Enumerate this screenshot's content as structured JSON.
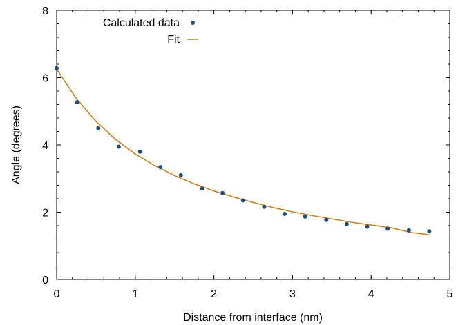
{
  "chart_data": {
    "type": "scatter",
    "xlabel": "Distance from interface (nm)",
    "ylabel": "Angle (degrees)",
    "xlim": [
      0,
      5
    ],
    "ylim": [
      0,
      8
    ],
    "x_ticks": [
      0,
      1,
      2,
      3,
      4,
      5
    ],
    "y_ticks": [
      0,
      2,
      4,
      6,
      8
    ],
    "x_tick_labels": [
      "0",
      "1",
      "2",
      "3",
      "4",
      "5"
    ],
    "y_tick_labels": [
      "0",
      "2",
      "4",
      "6",
      "8"
    ],
    "grid": false,
    "legend_position": "top-left",
    "series": [
      {
        "name": "Calculated data",
        "kind": "points",
        "color": "#1f4e79",
        "x": [
          0.0,
          0.26,
          0.53,
          0.79,
          1.06,
          1.32,
          1.58,
          1.85,
          2.11,
          2.37,
          2.64,
          2.9,
          3.16,
          3.43,
          3.69,
          3.95,
          4.21,
          4.48,
          4.74
        ],
        "y": [
          6.28,
          5.27,
          4.5,
          3.95,
          3.8,
          3.34,
          3.1,
          2.7,
          2.57,
          2.35,
          2.16,
          1.95,
          1.87,
          1.77,
          1.65,
          1.57,
          1.51,
          1.46,
          1.43
        ]
      },
      {
        "name": "Fit",
        "kind": "line",
        "color": "#c8831e",
        "x": [
          0.0,
          0.25,
          0.5,
          0.75,
          1.0,
          1.25,
          1.5,
          1.75,
          2.0,
          2.25,
          2.5,
          2.75,
          3.0,
          3.25,
          3.5,
          3.75,
          4.0,
          4.25,
          4.5,
          4.74
        ],
        "y": [
          6.25,
          5.38,
          4.7,
          4.16,
          3.73,
          3.38,
          3.09,
          2.84,
          2.63,
          2.45,
          2.29,
          2.14,
          2.01,
          1.9,
          1.8,
          1.7,
          1.62,
          1.54,
          1.4,
          1.33
        ]
      }
    ]
  }
}
